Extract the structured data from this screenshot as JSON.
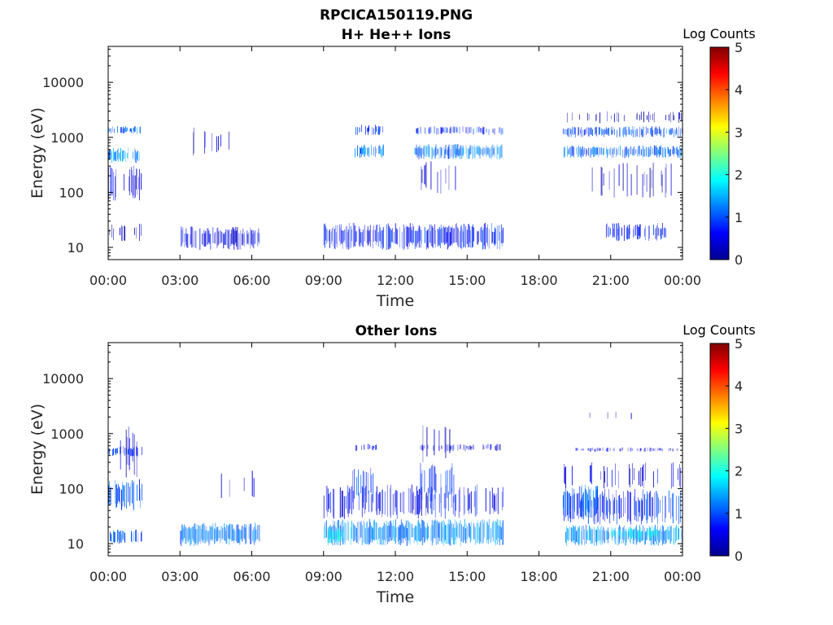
{
  "figure": {
    "filename": "RPCICA150119.PNG"
  },
  "chart_data": [
    {
      "type": "heatmap",
      "title": "H+ He++ Ions",
      "xlabel": "Time",
      "ylabel": "Energy (eV)",
      "xlim": [
        0,
        24
      ],
      "ylim": [
        6,
        45000
      ],
      "yscale": "log",
      "x_ticks": [
        "00:00",
        "03:00",
        "06:00",
        "09:00",
        "12:00",
        "15:00",
        "18:00",
        "21:00",
        "00:00"
      ],
      "y_ticks": [
        "10",
        "100",
        "1000",
        "10000"
      ],
      "y_tick_values": [
        10,
        100,
        1000,
        10000
      ],
      "colorbar": {
        "label": "Log Counts",
        "range": [
          0,
          5
        ],
        "ticks": [
          "0",
          "1",
          "2",
          "3",
          "4",
          "5"
        ]
      },
      "bands": [
        {
          "t0": 0.0,
          "t1": 1.4,
          "e0": 1150,
          "e1": 1600,
          "level": 1.1,
          "density": 0.6
        },
        {
          "t0": 0.0,
          "t1": 1.3,
          "e0": 340,
          "e1": 650,
          "level": 1.3,
          "density": 0.8
        },
        {
          "t0": 0.0,
          "t1": 1.4,
          "e0": 70,
          "e1": 320,
          "level": 0.5,
          "density": 0.35
        },
        {
          "t0": 0.0,
          "t1": 1.4,
          "e0": 13,
          "e1": 28,
          "level": 0.3,
          "density": 0.25
        },
        {
          "t0": 3.0,
          "t1": 6.3,
          "e0": 9,
          "e1": 24,
          "level": 0.5,
          "density": 0.55
        },
        {
          "t0": 3.5,
          "t1": 5.5,
          "e0": 450,
          "e1": 1600,
          "level": 0.3,
          "density": 0.15
        },
        {
          "t0": 9.0,
          "t1": 16.5,
          "e0": 9,
          "e1": 28,
          "level": 0.7,
          "density": 0.7
        },
        {
          "t0": 10.3,
          "t1": 11.5,
          "e0": 1100,
          "e1": 1700,
          "level": 0.9,
          "density": 0.55
        },
        {
          "t0": 10.3,
          "t1": 11.5,
          "e0": 420,
          "e1": 750,
          "level": 1.3,
          "density": 0.75
        },
        {
          "t0": 12.8,
          "t1": 16.5,
          "e0": 1100,
          "e1": 1600,
          "level": 0.8,
          "density": 0.45
        },
        {
          "t0": 12.8,
          "t1": 16.5,
          "e0": 400,
          "e1": 750,
          "level": 1.2,
          "density": 0.75
        },
        {
          "t0": 13.0,
          "t1": 14.5,
          "e0": 90,
          "e1": 380,
          "level": 0.4,
          "density": 0.2
        },
        {
          "t0": 19.0,
          "t1": 24.0,
          "e0": 1000,
          "e1": 1600,
          "level": 1.0,
          "density": 0.6
        },
        {
          "t0": 19.0,
          "t1": 24.0,
          "e0": 420,
          "e1": 720,
          "level": 1.1,
          "density": 0.7
        },
        {
          "t0": 19.0,
          "t1": 24.0,
          "e0": 1800,
          "e1": 3000,
          "level": 0.3,
          "density": 0.25
        },
        {
          "t0": 19.5,
          "t1": 24.0,
          "e0": 80,
          "e1": 350,
          "level": 0.3,
          "density": 0.15
        },
        {
          "t0": 20.8,
          "t1": 23.3,
          "e0": 13,
          "e1": 28,
          "level": 0.7,
          "density": 0.6
        }
      ]
    },
    {
      "type": "heatmap",
      "title": "Other Ions",
      "xlabel": "Time",
      "ylabel": "Energy (eV)",
      "xlim": [
        0,
        24
      ],
      "ylim": [
        6,
        45000
      ],
      "yscale": "log",
      "x_ticks": [
        "00:00",
        "03:00",
        "06:00",
        "09:00",
        "12:00",
        "15:00",
        "18:00",
        "21:00",
        "00:00"
      ],
      "y_ticks": [
        "10",
        "100",
        "1000",
        "10000"
      ],
      "y_tick_values": [
        10,
        100,
        1000,
        10000
      ],
      "colorbar": {
        "label": "Log Counts",
        "range": [
          0,
          5
        ],
        "ticks": [
          "0",
          "1",
          "2",
          "3",
          "4",
          "5"
        ]
      },
      "bands": [
        {
          "t0": 0.0,
          "t1": 1.4,
          "e0": 380,
          "e1": 600,
          "level": 0.9,
          "density": 0.6
        },
        {
          "t0": 0.0,
          "t1": 1.4,
          "e0": 40,
          "e1": 150,
          "level": 1.0,
          "density": 0.65
        },
        {
          "t0": 0.0,
          "t1": 1.4,
          "e0": 10,
          "e1": 18,
          "level": 1.1,
          "density": 0.7
        },
        {
          "t0": 0.5,
          "t1": 1.3,
          "e0": 150,
          "e1": 1500,
          "level": 0.4,
          "density": 0.25
        },
        {
          "t0": 3.0,
          "t1": 6.3,
          "e0": 9,
          "e1": 24,
          "level": 1.2,
          "density": 0.85
        },
        {
          "t0": 4.0,
          "t1": 6.3,
          "e0": 60,
          "e1": 220,
          "level": 0.3,
          "density": 0.1
        },
        {
          "t0": 9.0,
          "t1": 16.5,
          "e0": 9,
          "e1": 28,
          "level": 1.3,
          "density": 0.85
        },
        {
          "t0": 9.0,
          "t1": 9.8,
          "e0": 10,
          "e1": 20,
          "level": 1.8,
          "density": 0.8
        },
        {
          "t0": 9.0,
          "t1": 16.5,
          "e0": 28,
          "e1": 120,
          "level": 0.6,
          "density": 0.45
        },
        {
          "t0": 10.2,
          "t1": 11.2,
          "e0": 50,
          "e1": 250,
          "level": 0.9,
          "density": 0.5
        },
        {
          "t0": 13.0,
          "t1": 14.5,
          "e0": 50,
          "e1": 300,
          "level": 0.9,
          "density": 0.5
        },
        {
          "t0": 10.2,
          "t1": 11.2,
          "e0": 480,
          "e1": 650,
          "level": 0.6,
          "density": 0.4
        },
        {
          "t0": 13.0,
          "t1": 16.5,
          "e0": 480,
          "e1": 650,
          "level": 0.5,
          "density": 0.35
        },
        {
          "t0": 13.0,
          "t1": 14.5,
          "e0": 300,
          "e1": 1800,
          "level": 0.3,
          "density": 0.15
        },
        {
          "t0": 19.0,
          "t1": 24.0,
          "e0": 9,
          "e1": 22,
          "level": 1.3,
          "density": 0.85
        },
        {
          "t0": 21.0,
          "t1": 23.0,
          "e0": 12,
          "e1": 20,
          "level": 1.8,
          "density": 0.6
        },
        {
          "t0": 19.0,
          "t1": 24.0,
          "e0": 22,
          "e1": 100,
          "level": 0.8,
          "density": 0.6
        },
        {
          "t0": 19.0,
          "t1": 20.5,
          "e0": 30,
          "e1": 120,
          "level": 1.1,
          "density": 0.55
        },
        {
          "t0": 19.0,
          "t1": 24.0,
          "e0": 100,
          "e1": 300,
          "level": 0.4,
          "density": 0.25
        },
        {
          "t0": 19.5,
          "t1": 24.0,
          "e0": 470,
          "e1": 560,
          "level": 0.5,
          "density": 0.35
        },
        {
          "t0": 19.5,
          "t1": 22.0,
          "e0": 1800,
          "e1": 2600,
          "level": 0.2,
          "density": 0.1
        }
      ]
    }
  ]
}
